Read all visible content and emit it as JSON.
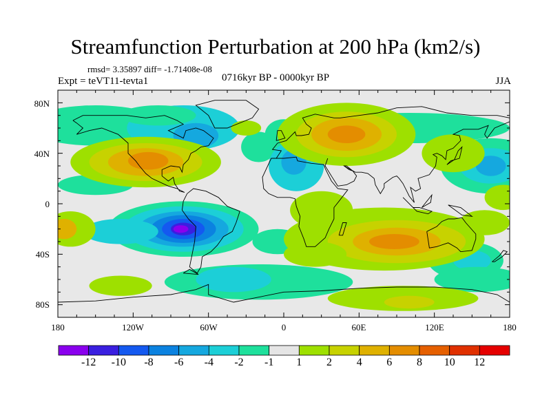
{
  "title": "Streamfunction Perturbation at 200 hPa (km2/s)",
  "stats": "rmsd= 3.35897 diff= -1.71408e-08",
  "experiment": "Expt = teVT11-tevta1",
  "period": "0716kyr BP - 0000kyr BP",
  "season": "JJA",
  "y_axis_labels": [
    "80N",
    "40N",
    "0",
    "40S",
    "80S"
  ],
  "x_axis_labels": [
    "180",
    "120W",
    "60W",
    "0",
    "60E",
    "120E",
    "180"
  ],
  "colorbar": {
    "labels": [
      "-12",
      "-10",
      "-8",
      "-6",
      "-4",
      "-2",
      "-1",
      "1",
      "2",
      "4",
      "6",
      "8",
      "10",
      "12"
    ],
    "colors": [
      "#8a00ee",
      "#3a1fe0",
      "#1459f0",
      "#0b82e0",
      "#15a8df",
      "#1ccfd7",
      "#1ee09c",
      "#e5e5e5",
      "#9ee000",
      "#c7d200",
      "#dfb100",
      "#e48d00",
      "#e55f00",
      "#e03000",
      "#e50000"
    ]
  },
  "chart_data": {
    "type": "heatmap",
    "title": "Streamfunction Perturbation at 200 hPa (km2/s)",
    "units": "km2/s",
    "projection": "cylindrical equidistant",
    "xlim": [
      -180,
      180
    ],
    "ylim": [
      -90,
      90
    ],
    "levels": [
      -12,
      -10,
      -8,
      -6,
      -4,
      -2,
      -1,
      1,
      2,
      4,
      6,
      8,
      10,
      12
    ],
    "approx_features": [
      {
        "name": "South Pacific low",
        "lon": -80,
        "lat": -22,
        "value": -13
      },
      {
        "name": "North Pacific high",
        "lon": -110,
        "lat": 33,
        "value": 8
      },
      {
        "name": "Eurasian high",
        "lon": 50,
        "lat": 55,
        "value": 8
      },
      {
        "name": "Indian Ocean high",
        "lon": 90,
        "lat": -30,
        "value": 8
      },
      {
        "name": "North Atlantic low",
        "lon": -80,
        "lat": 55,
        "value": -5
      },
      {
        "name": "African low",
        "lon": 10,
        "lat": 30,
        "value": -4
      },
      {
        "name": "West Pacific low",
        "lon": 165,
        "lat": 30,
        "value": -5
      }
    ]
  }
}
